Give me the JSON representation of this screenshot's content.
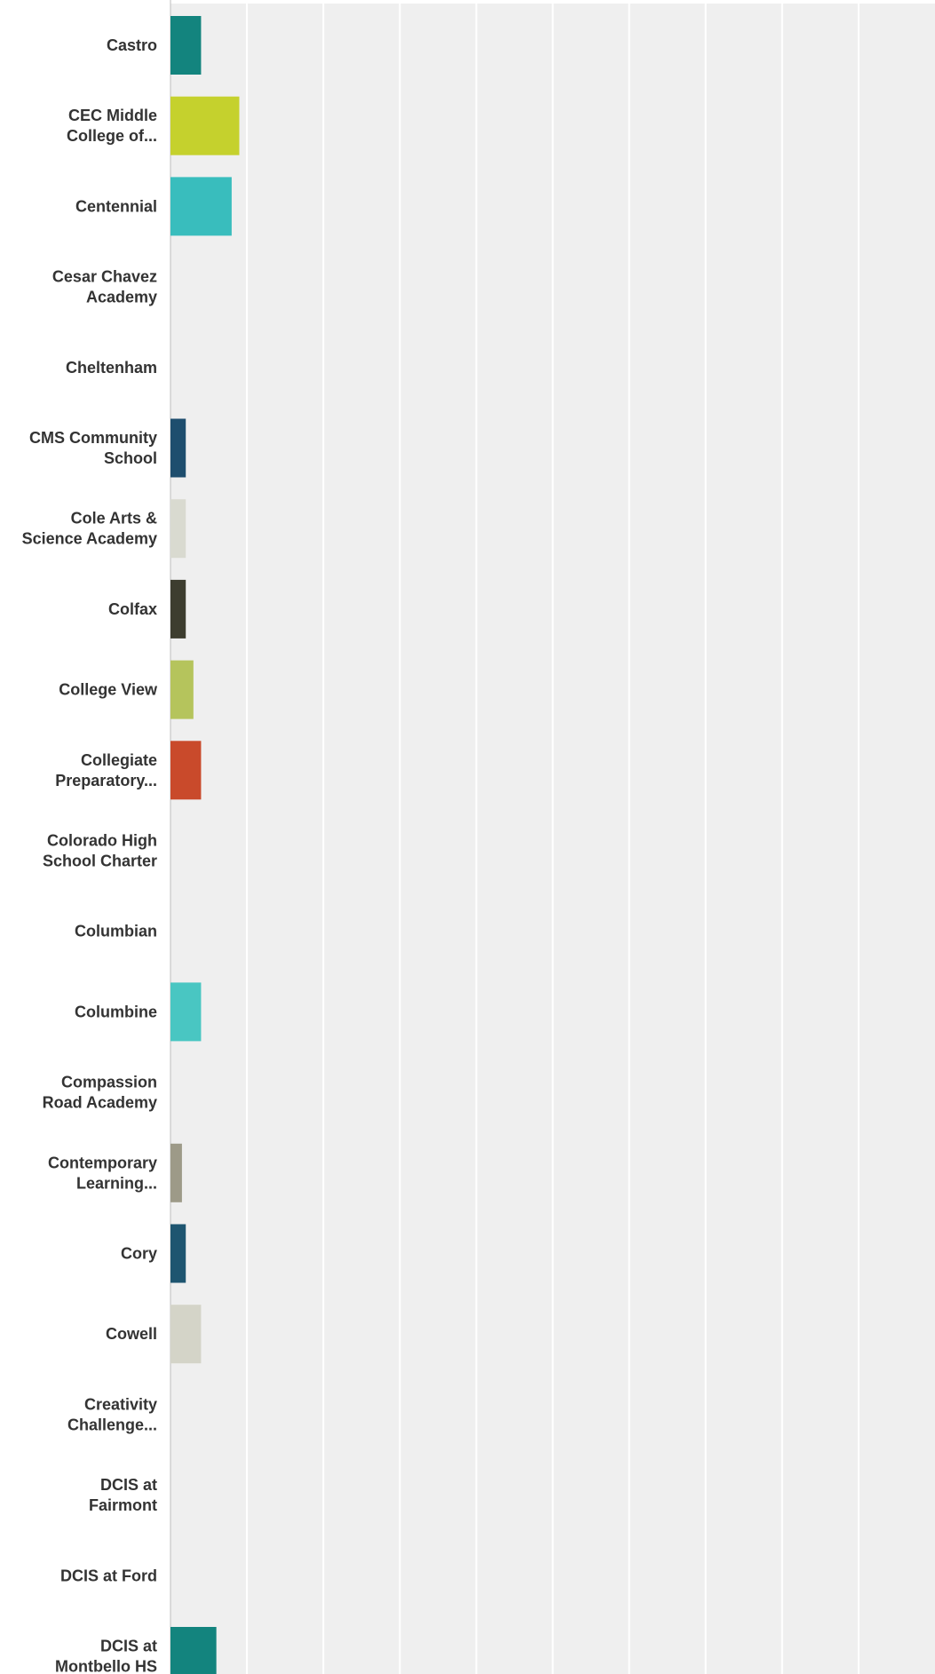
{
  "chart_data": {
    "type": "bar",
    "orientation": "horizontal",
    "grid": true,
    "categories": [
      "Castro",
      "CEC Middle College of...",
      "Centennial",
      "Cesar Chavez Academy",
      "Cheltenham",
      "CMS Community School",
      "Cole Arts & Science Academy",
      "Colfax",
      "College View",
      "Collegiate Preparatory...",
      "Colorado High School Charter",
      "Columbian",
      "Columbine",
      "Compassion Road Academy",
      "Contemporary Learning...",
      "Cory",
      "Cowell",
      "Creativity Challenge...",
      "DCIS at Fairmont",
      "DCIS at Ford",
      "DCIS at Montbello HS"
    ],
    "label_lines": [
      [
        "Castro"
      ],
      [
        "CEC Middle",
        "College of..."
      ],
      [
        "Centennial"
      ],
      [
        "Cesar Chavez",
        "Academy"
      ],
      [
        "Cheltenham"
      ],
      [
        "CMS Community",
        "School"
      ],
      [
        "Cole Arts &",
        "Science Academy"
      ],
      [
        "Colfax"
      ],
      [
        "College View"
      ],
      [
        "Collegiate",
        "Preparatory..."
      ],
      [
        "Colorado High",
        "School Charter"
      ],
      [
        "Columbian"
      ],
      [
        "Columbine"
      ],
      [
        "Compassion",
        "Road Academy"
      ],
      [
        "Contemporary",
        "Learning..."
      ],
      [
        "Cory"
      ],
      [
        "Cowell"
      ],
      [
        "Creativity",
        "Challenge..."
      ],
      [
        "DCIS at",
        "Fairmont"
      ],
      [
        "DCIS at Ford"
      ],
      [
        "DCIS at",
        "Montbello HS"
      ]
    ],
    "values": [
      0.4,
      0.9,
      0.8,
      0,
      0,
      0.2,
      0.2,
      0.2,
      0.3,
      0.4,
      0,
      0,
      0.4,
      0,
      0.15,
      0.2,
      0.4,
      0,
      0,
      0,
      0.6
    ],
    "bar_colors": [
      "#13847e",
      "#c5d12d",
      "#39bdbd",
      "#39bdbd",
      "#39bdbd",
      "#1e4e6e",
      "#d9dad0",
      "#3d3d2f",
      "#b5c45c",
      "#c94a2b",
      "#39bdbd",
      "#39bdbd",
      "#49c6c2",
      "#39bdbd",
      "#9d9a88",
      "#1e5570",
      "#d4d4c8",
      "#39bdbd",
      "#39bdbd",
      "#39bdbd",
      "#13847e"
    ],
    "xlim": [
      0,
      10
    ],
    "gridline_count": 10,
    "plot_background": "#efefef",
    "gridline_color": "#ffffff",
    "axis_color": "#bdbdbd"
  }
}
